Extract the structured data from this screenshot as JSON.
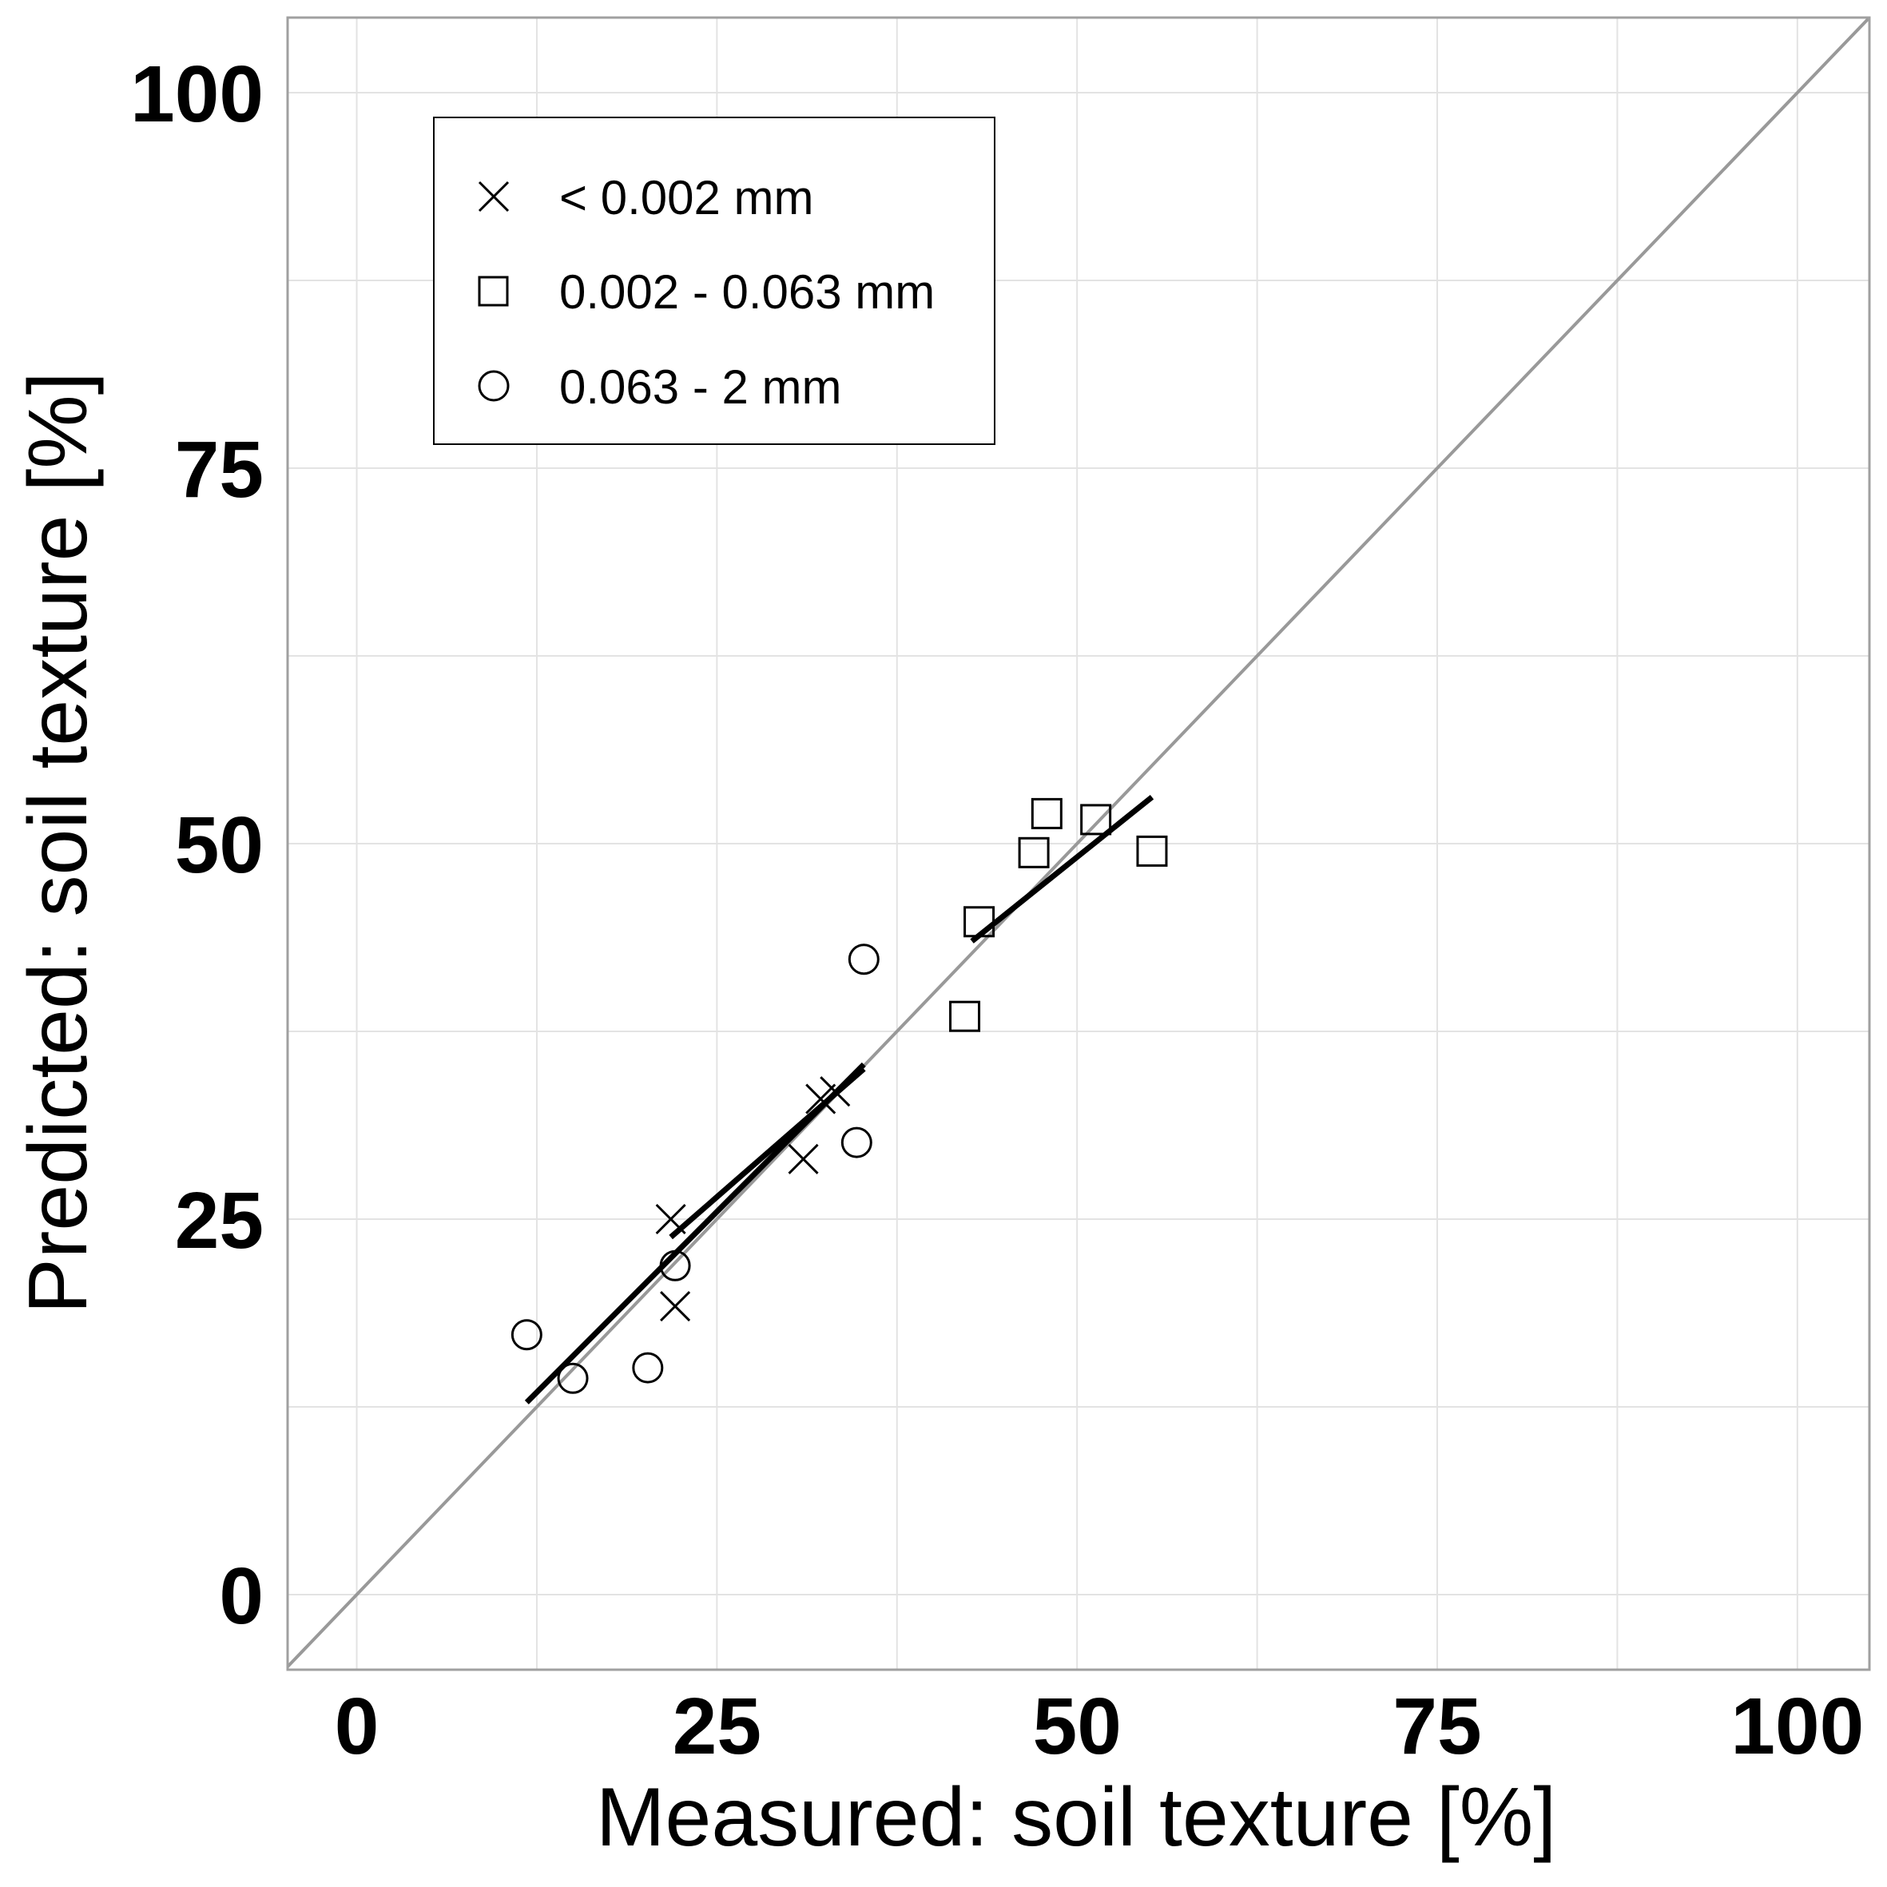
{
  "chart_data": {
    "type": "scatter",
    "xlabel": "Measured: soil texture [%]",
    "ylabel": "Predicted: soil texture [%]",
    "xlim": [
      -4.8,
      105
    ],
    "ylim": [
      -5,
      105
    ],
    "x_ticks": [
      0,
      25,
      50,
      75,
      100
    ],
    "y_ticks": [
      0,
      25,
      50,
      75,
      100
    ],
    "x_tick_labels": [
      "0",
      "25",
      "50",
      "75",
      "100"
    ],
    "y_tick_labels": [
      "0",
      "25",
      "50",
      "75",
      "100"
    ],
    "grid": true,
    "identity_line": true,
    "identity_line_color": "#999999",
    "legend_position": "top-left",
    "series": [
      {
        "name": "< 0.002 mm",
        "marker": "x",
        "points": [
          [
            21.8,
            25.0
          ],
          [
            22.1,
            19.2
          ],
          [
            31.0,
            29.0
          ],
          [
            32.2,
            33.0
          ],
          [
            33.2,
            33.5
          ]
        ],
        "fit": [
          [
            21.8,
            23.8
          ],
          [
            35.2,
            35.0
          ]
        ]
      },
      {
        "name": "0.002 - 0.063 mm",
        "marker": "square",
        "points": [
          [
            42.2,
            38.5
          ],
          [
            43.2,
            44.8
          ],
          [
            47.0,
            49.4
          ],
          [
            47.9,
            52.0
          ],
          [
            51.3,
            51.6
          ],
          [
            55.2,
            49.5
          ]
        ],
        "fit": [
          [
            42.7,
            43.5
          ],
          [
            55.2,
            53.1
          ]
        ]
      },
      {
        "name": "0.063 - 2 mm",
        "marker": "circle",
        "points": [
          [
            11.8,
            17.3
          ],
          [
            15.0,
            14.4
          ],
          [
            20.2,
            15.1
          ],
          [
            22.1,
            21.9
          ],
          [
            34.7,
            30.1
          ],
          [
            35.2,
            42.3
          ]
        ],
        "fit": [
          [
            11.8,
            12.8
          ],
          [
            35.2,
            35.3
          ]
        ]
      }
    ]
  },
  "colors": {
    "background": "#ffffff",
    "grid": "#e3e3e3",
    "panel_border": "#a0a0a0",
    "identity_line": "#999999",
    "marks": "#000000"
  }
}
